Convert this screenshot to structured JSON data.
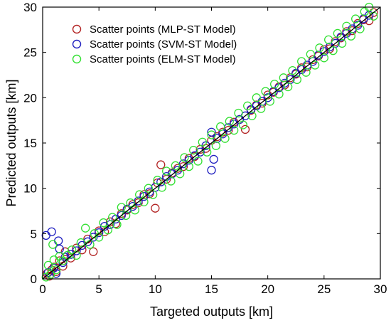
{
  "chart_data": {
    "type": "scatter",
    "title": "",
    "xlabel": "Targeted outputs [km]",
    "ylabel": "Predicted outputs [km]",
    "xlim": [
      0,
      30
    ],
    "ylim": [
      0,
      30
    ],
    "xticks": [
      "0",
      "5",
      "10",
      "15",
      "20",
      "25",
      "30"
    ],
    "yticks": [
      "0",
      "5",
      "10",
      "15",
      "20",
      "25",
      "30"
    ],
    "grid": false,
    "legend_position": "top-left",
    "reference_line": {
      "from": [
        0,
        0
      ],
      "to": [
        30,
        30
      ],
      "color": "#000000"
    },
    "series": [
      {
        "name": "Scatter points (MLP-ST Model)",
        "color": "#b22222",
        "marker": "open-circle",
        "points": [
          [
            0.4,
            0.6
          ],
          [
            0.6,
            0.3
          ],
          [
            0.8,
            1.0
          ],
          [
            1.0,
            1.3
          ],
          [
            1.2,
            0.8
          ],
          [
            1.5,
            2.0
          ],
          [
            1.8,
            1.4
          ],
          [
            2.0,
            3.0
          ],
          [
            2.5,
            2.3
          ],
          [
            3.0,
            3.4
          ],
          [
            3.5,
            3.2
          ],
          [
            4.0,
            4.4
          ],
          [
            4.5,
            3.0
          ],
          [
            5.0,
            5.3
          ],
          [
            5.5,
            5.2
          ],
          [
            6.0,
            6.3
          ],
          [
            6.5,
            6.1
          ],
          [
            7.0,
            7.2
          ],
          [
            7.5,
            7.6
          ],
          [
            8.0,
            8.2
          ],
          [
            8.5,
            8.4
          ],
          [
            9.0,
            9.3
          ],
          [
            9.5,
            9.4
          ],
          [
            10.0,
            7.8
          ],
          [
            10.2,
            10.6
          ],
          [
            10.5,
            12.6
          ],
          [
            11.0,
            11.0
          ],
          [
            11.5,
            11.7
          ],
          [
            12.0,
            12.2
          ],
          [
            12.5,
            12.4
          ],
          [
            13.0,
            13.3
          ],
          [
            13.5,
            13.5
          ],
          [
            14.0,
            14.3
          ],
          [
            14.5,
            14.4
          ],
          [
            15.0,
            15.3
          ],
          [
            15.5,
            15.7
          ],
          [
            16.0,
            16.2
          ],
          [
            16.5,
            16.4
          ],
          [
            17.0,
            17.3
          ],
          [
            17.5,
            17.6
          ],
          [
            18.0,
            16.5
          ],
          [
            18.5,
            18.6
          ],
          [
            19.0,
            19.2
          ],
          [
            19.5,
            19.4
          ],
          [
            20.0,
            20.3
          ],
          [
            20.5,
            20.6
          ],
          [
            21.0,
            21.2
          ],
          [
            21.5,
            21.4
          ],
          [
            22.0,
            22.2
          ],
          [
            22.5,
            22.6
          ],
          [
            23.0,
            23.3
          ],
          [
            23.5,
            23.4
          ],
          [
            24.0,
            24.2
          ],
          [
            24.5,
            24.6
          ],
          [
            25.0,
            25.3
          ],
          [
            25.5,
            25.4
          ],
          [
            26.0,
            26.2
          ],
          [
            26.5,
            26.6
          ],
          [
            27.0,
            27.3
          ],
          [
            27.5,
            27.4
          ],
          [
            28.0,
            28.2
          ],
          [
            28.5,
            28.6
          ],
          [
            29.0,
            28.5
          ],
          [
            29.4,
            29.4
          ]
        ]
      },
      {
        "name": "Scatter points (SVM-ST Model)",
        "color": "#1f1fbf",
        "marker": "open-circle",
        "points": [
          [
            0.3,
            4.8
          ],
          [
            0.5,
            0.7
          ],
          [
            0.8,
            5.2
          ],
          [
            1.0,
            1.2
          ],
          [
            1.2,
            0.6
          ],
          [
            1.4,
            4.2
          ],
          [
            1.5,
            3.3
          ],
          [
            1.8,
            1.8
          ],
          [
            2.0,
            2.4
          ],
          [
            2.5,
            2.7
          ],
          [
            3.0,
            3.1
          ],
          [
            3.5,
            3.7
          ],
          [
            4.0,
            4.1
          ],
          [
            4.5,
            4.6
          ],
          [
            5.0,
            5.1
          ],
          [
            5.5,
            5.8
          ],
          [
            6.0,
            6.0
          ],
          [
            6.5,
            6.6
          ],
          [
            7.0,
            7.0
          ],
          [
            7.5,
            7.7
          ],
          [
            8.0,
            8.0
          ],
          [
            8.5,
            8.6
          ],
          [
            9.0,
            9.1
          ],
          [
            9.5,
            9.6
          ],
          [
            10.0,
            10.1
          ],
          [
            10.5,
            10.7
          ],
          [
            11.0,
            11.3
          ],
          [
            11.5,
            11.6
          ],
          [
            12.0,
            12.0
          ],
          [
            12.5,
            12.7
          ],
          [
            13.0,
            13.1
          ],
          [
            13.5,
            13.6
          ],
          [
            14.0,
            14.0
          ],
          [
            14.5,
            14.7
          ],
          [
            15.0,
            12.0
          ],
          [
            15.0,
            16.2
          ],
          [
            15.2,
            13.2
          ],
          [
            15.5,
            15.5
          ],
          [
            16.0,
            16.0
          ],
          [
            16.5,
            16.7
          ],
          [
            17.0,
            17.1
          ],
          [
            17.5,
            17.6
          ],
          [
            18.0,
            18.0
          ],
          [
            18.5,
            18.7
          ],
          [
            19.0,
            19.1
          ],
          [
            19.5,
            19.6
          ],
          [
            20.0,
            20.0
          ],
          [
            20.5,
            20.7
          ],
          [
            21.0,
            21.1
          ],
          [
            21.5,
            21.6
          ],
          [
            22.0,
            22.0
          ],
          [
            22.5,
            22.7
          ],
          [
            23.0,
            23.1
          ],
          [
            23.5,
            23.6
          ],
          [
            24.0,
            24.0
          ],
          [
            24.5,
            24.7
          ],
          [
            25.0,
            25.1
          ],
          [
            25.5,
            25.6
          ],
          [
            26.0,
            26.0
          ],
          [
            26.5,
            26.7
          ],
          [
            27.0,
            27.1
          ],
          [
            27.5,
            27.6
          ],
          [
            28.0,
            28.0
          ],
          [
            28.5,
            28.7
          ],
          [
            29.0,
            29.1
          ]
        ]
      },
      {
        "name": "Scatter points (ELM-ST Model)",
        "color": "#32e032",
        "marker": "open-circle",
        "points": [
          [
            0.3,
            0.2
          ],
          [
            0.5,
            1.5
          ],
          [
            0.7,
            0.5
          ],
          [
            0.9,
            3.8
          ],
          [
            1.0,
            2.1
          ],
          [
            1.2,
            1.0
          ],
          [
            1.5,
            2.5
          ],
          [
            1.8,
            2.0
          ],
          [
            2.2,
            2.6
          ],
          [
            2.6,
            3.2
          ],
          [
            3.0,
            2.6
          ],
          [
            3.4,
            4.0
          ],
          [
            3.8,
            5.6
          ],
          [
            4.2,
            3.8
          ],
          [
            4.6,
            5.0
          ],
          [
            5.0,
            4.6
          ],
          [
            5.4,
            6.2
          ],
          [
            5.8,
            5.4
          ],
          [
            6.2,
            6.8
          ],
          [
            6.6,
            6.0
          ],
          [
            7.0,
            7.9
          ],
          [
            7.4,
            7.0
          ],
          [
            7.8,
            8.4
          ],
          [
            8.2,
            7.6
          ],
          [
            8.6,
            9.3
          ],
          [
            9.0,
            8.5
          ],
          [
            9.4,
            10.0
          ],
          [
            9.8,
            9.3
          ],
          [
            10.2,
            10.9
          ],
          [
            10.6,
            10.1
          ],
          [
            11.0,
            11.9
          ],
          [
            11.4,
            10.8
          ],
          [
            11.8,
            12.5
          ],
          [
            12.2,
            11.6
          ],
          [
            12.6,
            13.4
          ],
          [
            13.0,
            12.4
          ],
          [
            13.4,
            14.2
          ],
          [
            13.8,
            13.0
          ],
          [
            14.2,
            15.1
          ],
          [
            14.6,
            14.0
          ],
          [
            15.0,
            15.9
          ],
          [
            15.4,
            14.7
          ],
          [
            15.8,
            16.8
          ],
          [
            16.2,
            15.5
          ],
          [
            16.6,
            17.4
          ],
          [
            17.0,
            16.4
          ],
          [
            17.4,
            18.3
          ],
          [
            17.8,
            17.0
          ],
          [
            18.2,
            19.1
          ],
          [
            18.6,
            18.0
          ],
          [
            19.0,
            20.0
          ],
          [
            19.4,
            18.8
          ],
          [
            19.8,
            20.7
          ],
          [
            20.2,
            19.6
          ],
          [
            20.6,
            21.5
          ],
          [
            21.0,
            20.4
          ],
          [
            21.4,
            22.2
          ],
          [
            21.8,
            21.2
          ],
          [
            22.2,
            23.0
          ],
          [
            22.6,
            22.0
          ],
          [
            23.0,
            24.0
          ],
          [
            23.4,
            22.8
          ],
          [
            23.8,
            24.8
          ],
          [
            24.2,
            23.6
          ],
          [
            24.6,
            25.5
          ],
          [
            25.0,
            24.4
          ],
          [
            25.4,
            26.4
          ],
          [
            25.8,
            25.2
          ],
          [
            26.2,
            27.1
          ],
          [
            26.6,
            26.0
          ],
          [
            27.0,
            27.9
          ],
          [
            27.4,
            26.8
          ],
          [
            27.8,
            28.7
          ],
          [
            28.2,
            27.6
          ],
          [
            28.6,
            29.5
          ],
          [
            29.0,
            30.0
          ],
          [
            29.4,
            29.0
          ]
        ]
      }
    ]
  }
}
